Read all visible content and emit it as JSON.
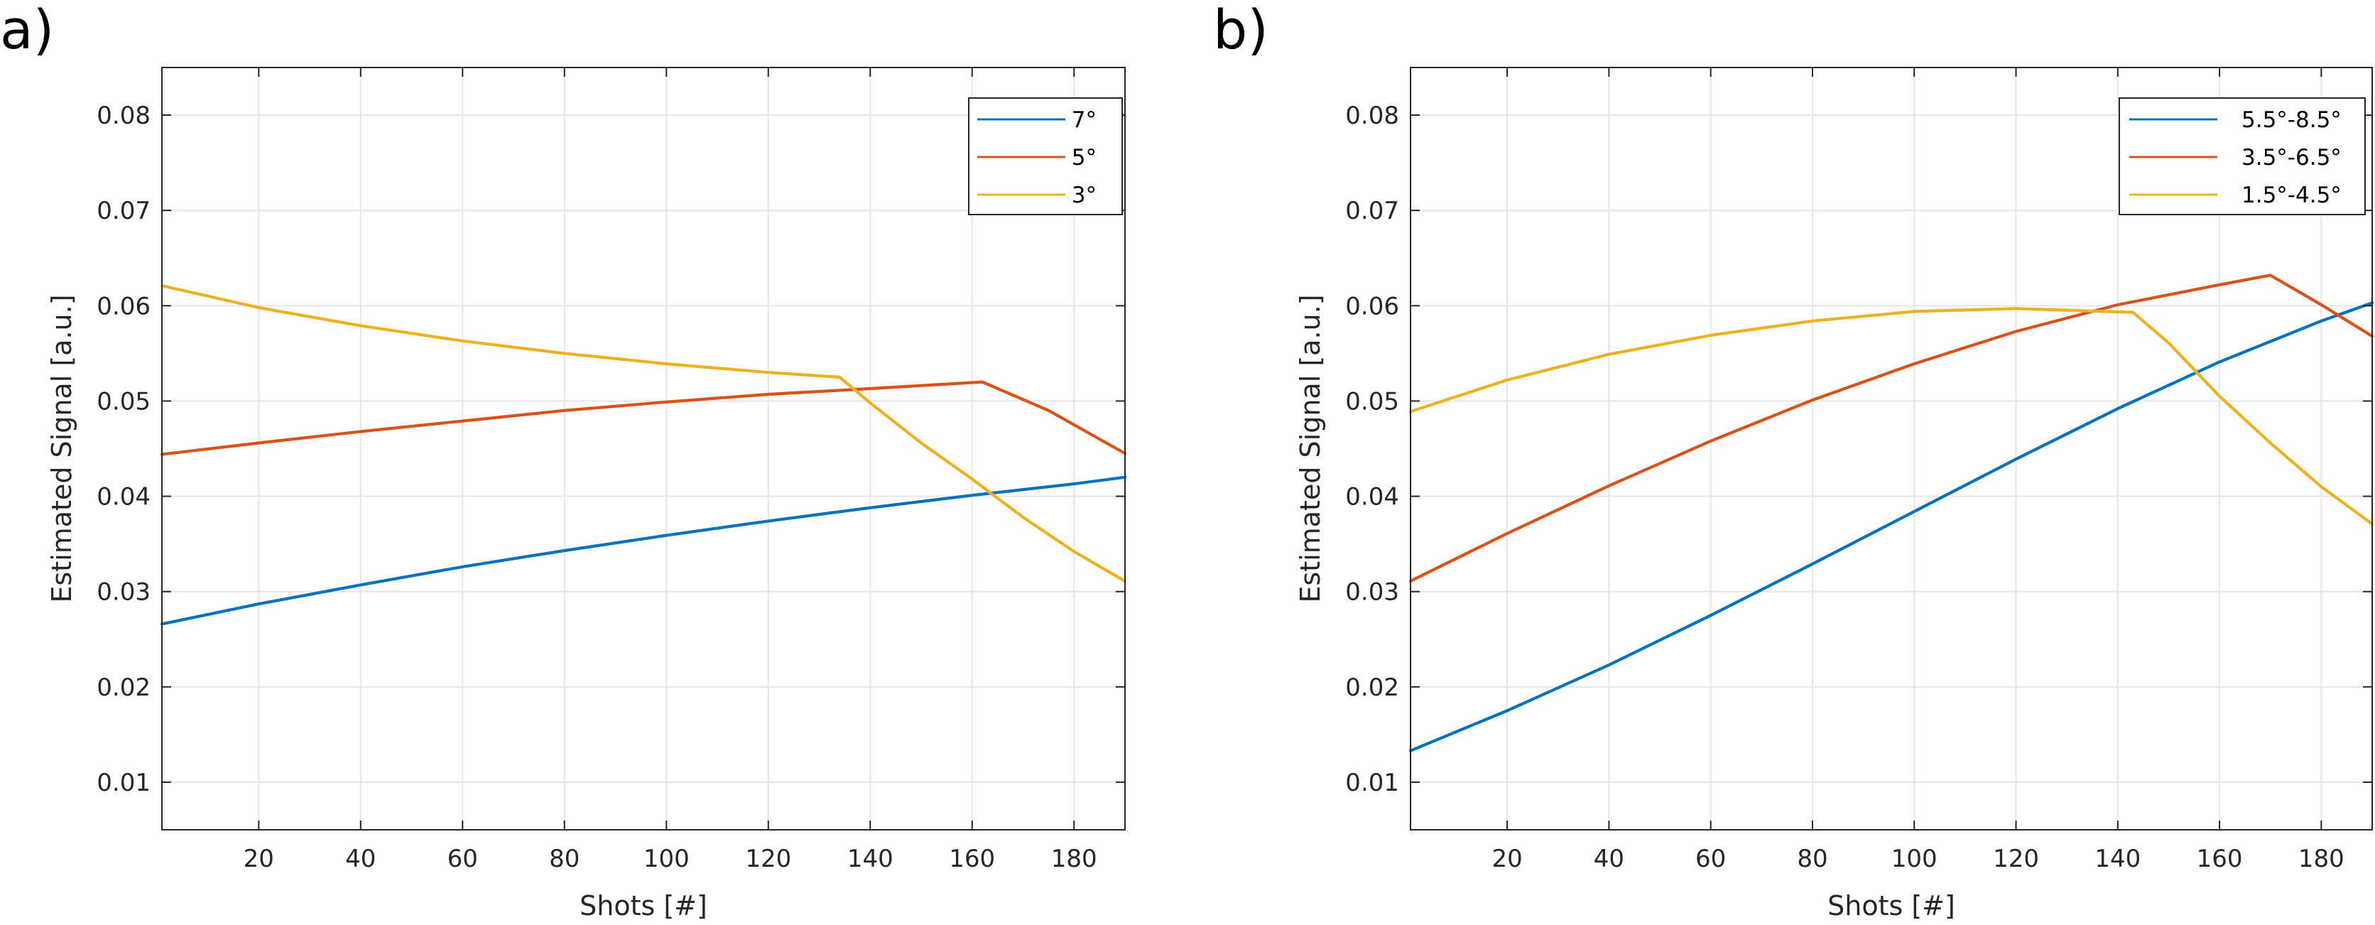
{
  "chart_data": [
    {
      "type": "line",
      "panel_label": "a)",
      "title": "",
      "xlabel": "Shots [#]",
      "ylabel": "Estimated Signal [a.u.]",
      "xlim": [
        1,
        190
      ],
      "ylim": [
        0.005,
        0.085
      ],
      "xticks": [
        20,
        40,
        60,
        80,
        100,
        120,
        140,
        160,
        180
      ],
      "xtick_labels": [
        "20",
        "40",
        "60",
        "80",
        "100",
        "120",
        "140",
        "160",
        "180"
      ],
      "yticks": [
        0.01,
        0.02,
        0.03,
        0.04,
        0.05,
        0.06,
        0.07,
        0.08
      ],
      "ytick_labels": [
        "0.01",
        "0.02",
        "0.03",
        "0.04",
        "0.05",
        "0.06",
        "0.07",
        "0.08"
      ],
      "grid": true,
      "legend_position": "top-right",
      "series": [
        {
          "name": "7°",
          "color": "#0072BD",
          "x": [
            1,
            20,
            40,
            60,
            80,
            100,
            120,
            140,
            160,
            180,
            190
          ],
          "y": [
            0.0266,
            0.0287,
            0.0307,
            0.0326,
            0.0343,
            0.0359,
            0.0374,
            0.0388,
            0.0401,
            0.0413,
            0.042
          ]
        },
        {
          "name": "5°",
          "color": "#D95319",
          "x": [
            1,
            20,
            40,
            60,
            80,
            100,
            120,
            140,
            162,
            175,
            190
          ],
          "y": [
            0.0444,
            0.0456,
            0.0468,
            0.0479,
            0.049,
            0.0499,
            0.0507,
            0.0513,
            0.052,
            0.049,
            0.0445
          ]
        },
        {
          "name": "3°",
          "color": "#EDB120",
          "x": [
            1,
            20,
            40,
            60,
            80,
            100,
            120,
            134,
            140,
            150,
            160,
            170,
            180,
            190
          ],
          "y": [
            0.0621,
            0.0598,
            0.0579,
            0.0563,
            0.055,
            0.0539,
            0.053,
            0.0525,
            0.0498,
            0.0456,
            0.0418,
            0.0378,
            0.0342,
            0.0311
          ]
        }
      ]
    },
    {
      "type": "line",
      "panel_label": "b)",
      "title": "",
      "xlabel": "Shots [#]",
      "ylabel": "Estimated Signal [a.u.]",
      "xlim": [
        1,
        190
      ],
      "ylim": [
        0.005,
        0.085
      ],
      "xticks": [
        20,
        40,
        60,
        80,
        100,
        120,
        140,
        160,
        180
      ],
      "xtick_labels": [
        "20",
        "40",
        "60",
        "80",
        "100",
        "120",
        "140",
        "160",
        "180"
      ],
      "yticks": [
        0.01,
        0.02,
        0.03,
        0.04,
        0.05,
        0.06,
        0.07,
        0.08
      ],
      "ytick_labels": [
        "0.01",
        "0.02",
        "0.03",
        "0.04",
        "0.05",
        "0.06",
        "0.07",
        "0.08"
      ],
      "grid": true,
      "legend_position": "top-right",
      "series": [
        {
          "name": "5.5°-8.5°",
          "color": "#0072BD",
          "x": [
            1,
            20,
            40,
            60,
            80,
            100,
            120,
            140,
            160,
            180,
            190
          ],
          "y": [
            0.0133,
            0.0175,
            0.0223,
            0.0275,
            0.0329,
            0.0384,
            0.0439,
            0.0492,
            0.0541,
            0.0584,
            0.0603
          ]
        },
        {
          "name": "3.5°-6.5°",
          "color": "#D95319",
          "x": [
            1,
            20,
            40,
            60,
            80,
            100,
            120,
            140,
            160,
            170,
            180,
            190
          ],
          "y": [
            0.0311,
            0.0361,
            0.0411,
            0.0458,
            0.0501,
            0.0539,
            0.0573,
            0.0601,
            0.0622,
            0.0632,
            0.0601,
            0.0568
          ]
        },
        {
          "name": "1.5°-4.5°",
          "color": "#EDB120",
          "x": [
            1,
            20,
            40,
            60,
            80,
            100,
            120,
            143,
            150,
            160,
            170,
            180,
            190
          ],
          "y": [
            0.0489,
            0.0522,
            0.0549,
            0.0569,
            0.0584,
            0.0594,
            0.0597,
            0.0593,
            0.0561,
            0.0505,
            0.0456,
            0.041,
            0.0371
          ]
        }
      ]
    }
  ]
}
